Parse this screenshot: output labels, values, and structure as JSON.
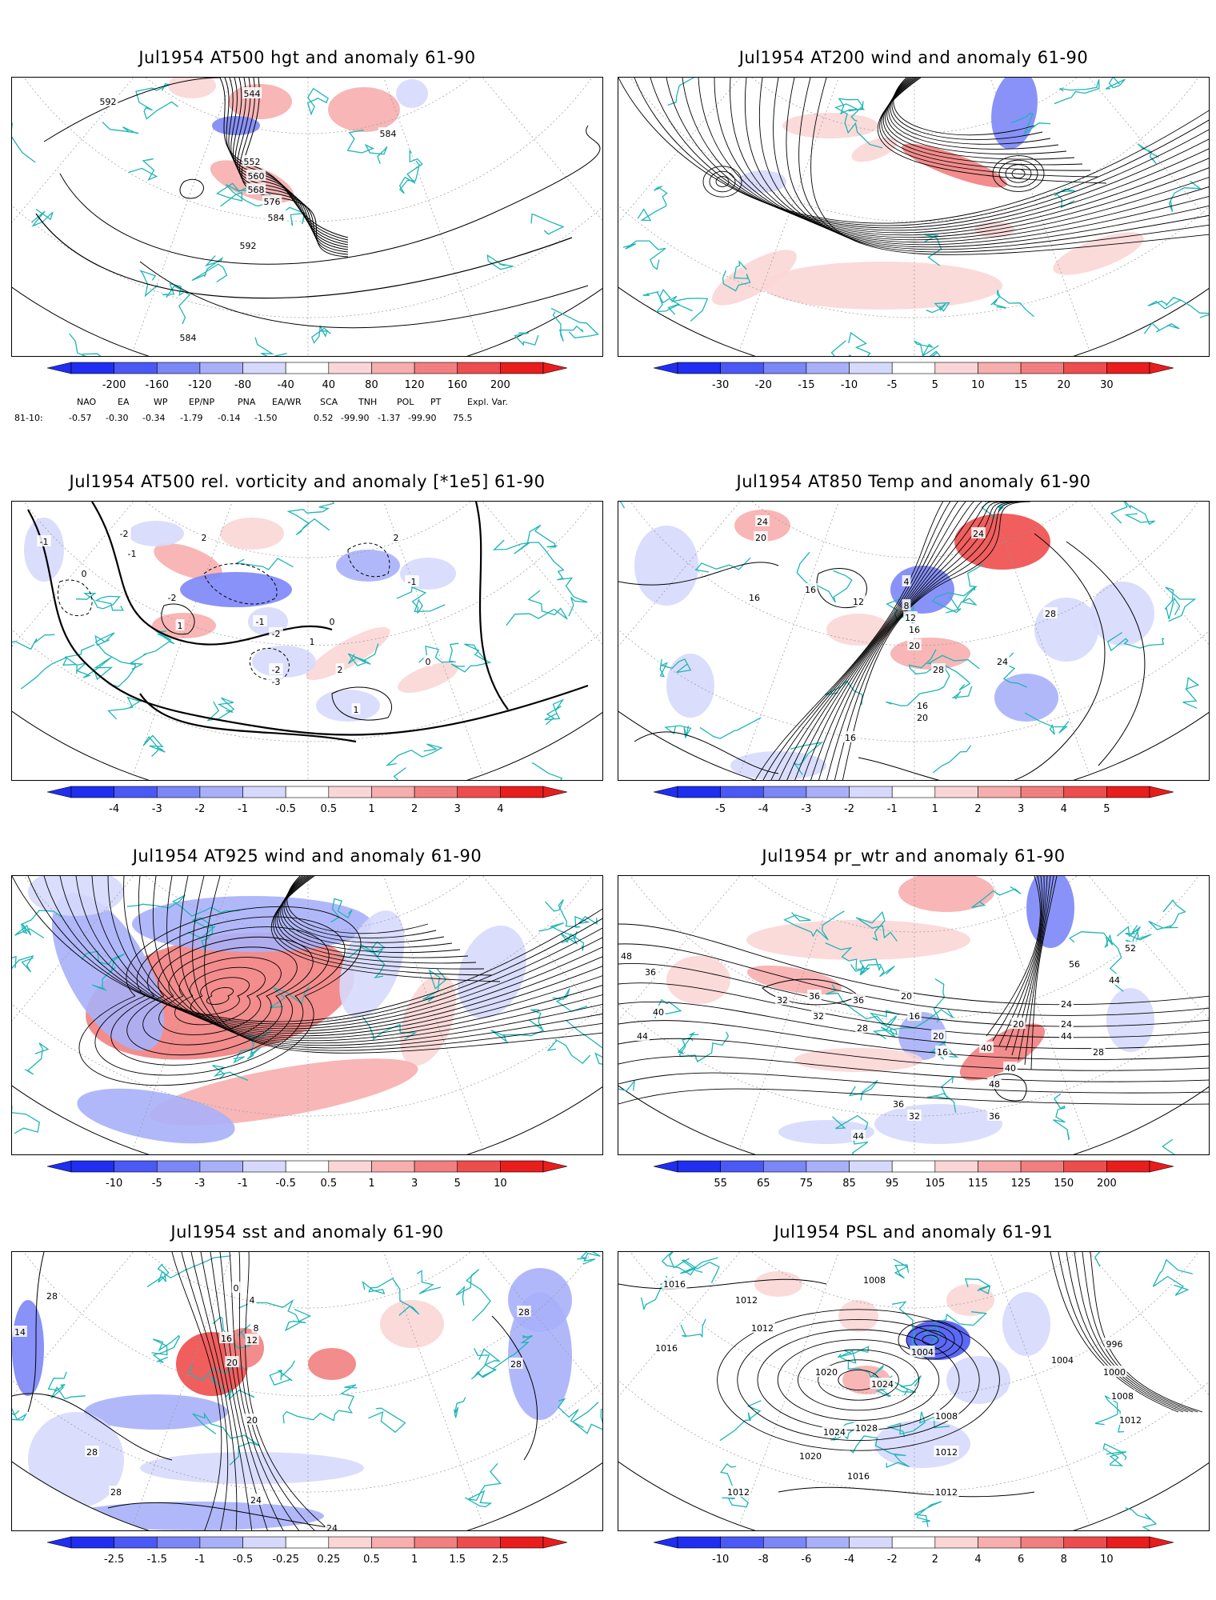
{
  "panels": [
    {
      "id": "p1",
      "title": "Jul1954 AT500 hgt and anomaly 61-90",
      "contour_labels": [
        "592",
        "544",
        "552",
        "560",
        "568",
        "576",
        "584",
        "584",
        "592",
        "584"
      ],
      "colorbar": {
        "ticks": [
          "-200",
          "-160",
          "-120",
          "-80",
          "-40",
          "40",
          "80",
          "120",
          "160",
          "200"
        ]
      }
    },
    {
      "id": "p2",
      "title": "Jul1954 AT200 wind and anomaly 61-90",
      "contour_labels": [],
      "colorbar": {
        "ticks": [
          "-30",
          "-20",
          "-15",
          "-10",
          "-5",
          "5",
          "10",
          "15",
          "20",
          "30"
        ]
      }
    },
    {
      "id": "p3",
      "title": "Jul1954 AT500 rel. vorticity and anomaly [*1e5] 61-90",
      "contour_labels": [
        "-1",
        "-2",
        "0",
        "-1",
        "2",
        "-2",
        "1",
        "-1",
        "-2",
        "0",
        "1",
        "2",
        "-1",
        "0",
        "-2",
        "-3",
        "2",
        "1"
      ],
      "colorbar": {
        "ticks": [
          "-4",
          "-3",
          "-2",
          "-1",
          "-0.5",
          "0.5",
          "1",
          "2",
          "3",
          "4"
        ]
      }
    },
    {
      "id": "p4",
      "title": "Jul1954 AT850 Temp and anomaly 61-90",
      "contour_labels": [
        "24",
        "20",
        "16",
        "16",
        "4",
        "8",
        "12",
        "16",
        "20",
        "28",
        "24",
        "12",
        "24",
        "20",
        "16",
        "16",
        "28"
      ],
      "colorbar": {
        "ticks": [
          "-5",
          "-4",
          "-3",
          "-2",
          "-1",
          "1",
          "2",
          "3",
          "4",
          "5"
        ]
      }
    },
    {
      "id": "p5",
      "title": "Jul1954 AT925 wind and anomaly 61-90",
      "contour_labels": [],
      "colorbar": {
        "ticks": [
          "-10",
          "-5",
          "-3",
          "-1",
          "-0.5",
          "0.5",
          "1",
          "3",
          "5",
          "10"
        ]
      }
    },
    {
      "id": "p6",
      "title": "Jul1954 pr_wtr and anomaly 61-90",
      "contour_labels": [
        "48",
        "36",
        "40",
        "44",
        "32",
        "36",
        "36",
        "28",
        "32",
        "20",
        "16",
        "20",
        "16",
        "24",
        "44",
        "56",
        "52",
        "44",
        "20",
        "24",
        "40",
        "36",
        "32",
        "44",
        "36",
        "40",
        "48",
        "28"
      ],
      "colorbar": {
        "ticks": [
          "55",
          "65",
          "75",
          "85",
          "95",
          "105",
          "115",
          "125",
          "150",
          "200"
        ]
      }
    },
    {
      "id": "p7",
      "title": "Jul1954 sst and anomaly 61-90",
      "contour_labels": [
        "28",
        "16",
        "20",
        "12",
        "8",
        "4",
        "0",
        "28",
        "20",
        "28",
        "24",
        "24",
        "28",
        "28",
        "14"
      ],
      "colorbar": {
        "ticks": [
          "-2.5",
          "-1.5",
          "-1",
          "-0.5",
          "-0.25",
          "0.25",
          "0.5",
          "1",
          "1.5",
          "2.5"
        ]
      }
    },
    {
      "id": "p8",
      "title": "Jul1954 PSL and anomaly 61-91",
      "contour_labels": [
        "1016",
        "1012",
        "1008",
        "1012",
        "1016",
        "1020",
        "1024",
        "1028",
        "1024",
        "1020",
        "1016",
        "1012",
        "1004",
        "1000",
        "996",
        "1008",
        "1012",
        "1008",
        "1012",
        "1012",
        "1004"
      ],
      "colorbar": {
        "ticks": [
          "-10",
          "-8",
          "-6",
          "-4",
          "-2",
          "2",
          "4",
          "6",
          "8",
          "10"
        ]
      }
    }
  ],
  "teleconnections": {
    "header": [
      "NAO",
      "EA",
      "WP",
      "EP/NP",
      "PNA",
      "EA/WR",
      "SCA",
      "TNH",
      "POL",
      "PT",
      "Expl. Var."
    ],
    "row_label": "81-10:",
    "values": [
      "-0.57",
      "-0.30",
      "-0.34",
      "-1.79",
      "-0.14",
      "-1.50",
      "0.52",
      "-99.90",
      "-1.37",
      "-99.90",
      "75.5"
    ]
  },
  "colors": {
    "blue_scale": [
      "#1f2ef0",
      "#4a58f5",
      "#7b86f7",
      "#a9b0fa",
      "#d6d9fc"
    ],
    "red_scale": [
      "#fbd6d6",
      "#f7aeae",
      "#f27f7f",
      "#ee4d4d",
      "#ea1d1d"
    ],
    "coast": "#1fb5b5"
  }
}
